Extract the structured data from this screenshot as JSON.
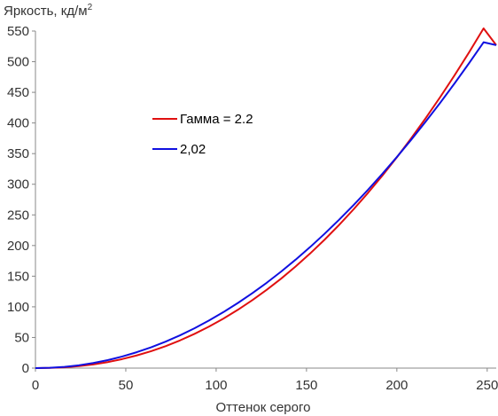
{
  "chart_data": {
    "type": "line",
    "title": "",
    "ylabel": "Яркость, кд/м",
    "ylabel_sup": "2",
    "xlabel": "Оттенок серого",
    "xlim": [
      0,
      255
    ],
    "ylim": [
      0,
      550
    ],
    "xticks": [
      0,
      50,
      100,
      150,
      200,
      250
    ],
    "yticks": [
      0,
      50,
      100,
      150,
      200,
      250,
      300,
      350,
      400,
      450,
      500,
      550
    ],
    "grid": false,
    "legend_placement": "upper-left-center",
    "series": [
      {
        "name": "Гамма = 2.2",
        "color": "#e01010",
        "x": [
          0,
          8,
          16,
          24,
          32,
          40,
          48,
          56,
          64,
          72,
          80,
          88,
          96,
          104,
          112,
          120,
          128,
          136,
          144,
          152,
          160,
          168,
          176,
          184,
          192,
          200,
          208,
          216,
          224,
          232,
          240,
          248,
          255
        ],
        "y": [
          0,
          0.27,
          1.3,
          3.2,
          6.0,
          9.8,
          14.7,
          20.6,
          27.6,
          35.8,
          45.2,
          55.8,
          67.6,
          80.7,
          95.1,
          110.8,
          127.8,
          146.1,
          165.9,
          187.0,
          209.5,
          233.5,
          258.9,
          285.8,
          314.1,
          343.9,
          375.2,
          408.0,
          442.3,
          478.1,
          515.4,
          554.3,
          527.0
        ]
      },
      {
        "name": "2,02",
        "color": "#1010e0",
        "x": [
          0,
          8,
          16,
          24,
          32,
          40,
          48,
          56,
          64,
          72,
          80,
          88,
          96,
          104,
          112,
          120,
          128,
          136,
          144,
          152,
          160,
          168,
          176,
          184,
          192,
          200,
          208,
          216,
          224,
          232,
          240,
          248,
          255
        ],
        "y": [
          0,
          0.5,
          2.0,
          4.6,
          8.3,
          13.0,
          18.9,
          25.9,
          34.0,
          43.2,
          53.5,
          65.0,
          77.6,
          91.3,
          106.2,
          122.2,
          139.3,
          157.6,
          177.0,
          197.5,
          219.2,
          242.0,
          265.9,
          290.9,
          317.1,
          344.4,
          372.8,
          402.3,
          433.0,
          464.8,
          497.7,
          531.7,
          527.0
        ]
      }
    ]
  }
}
